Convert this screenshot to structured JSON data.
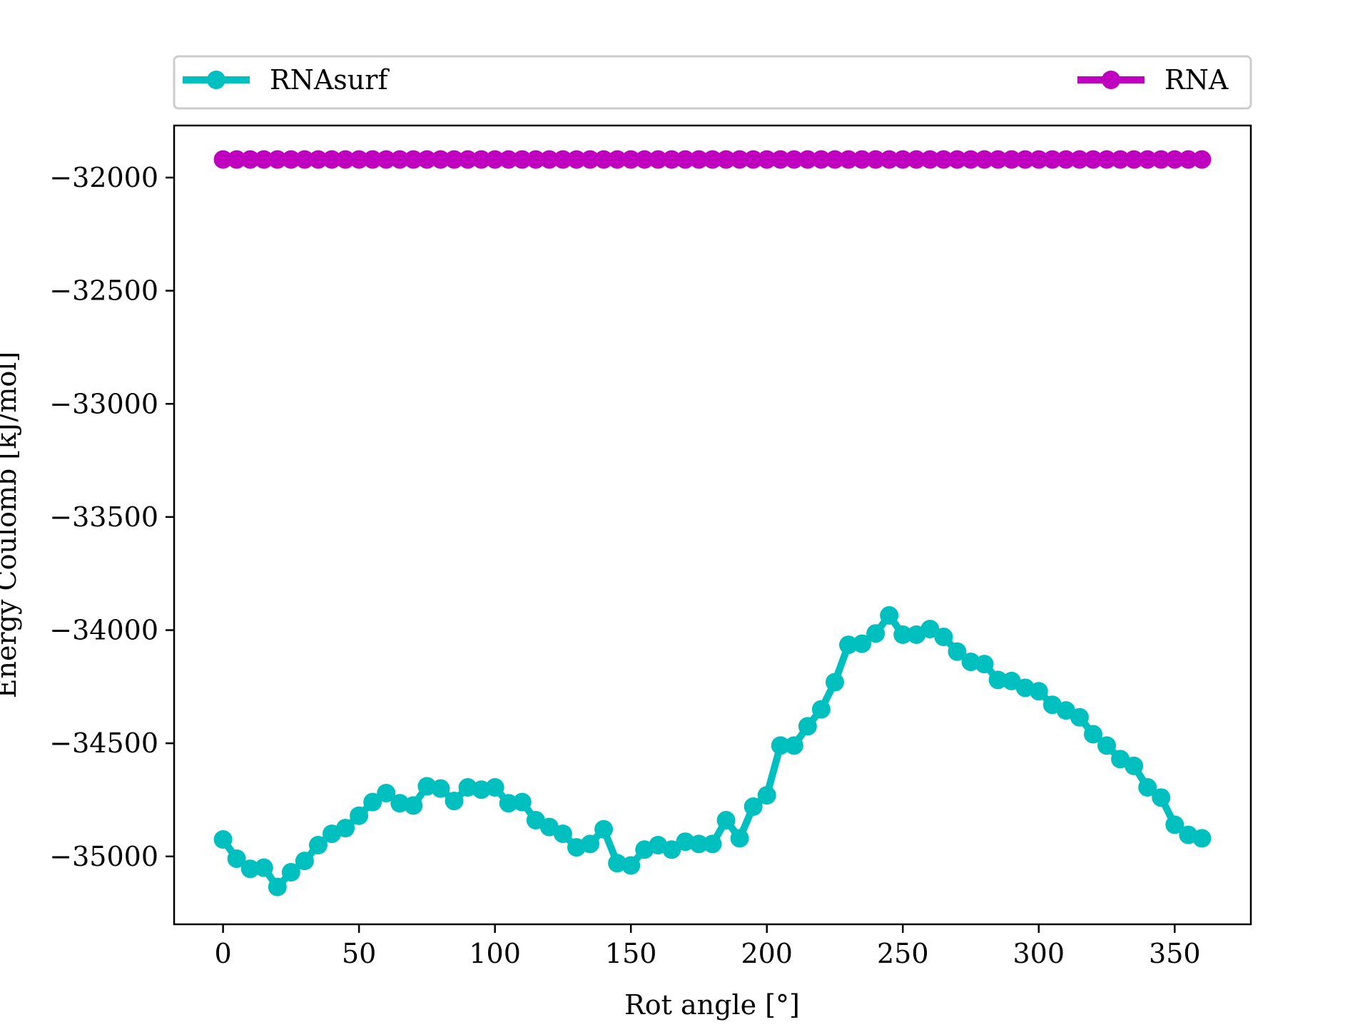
{
  "chart_data": {
    "type": "line",
    "title": "",
    "xlabel": "Rot angle [°]",
    "ylabel": "Energy Coulomb [kJ/mol]",
    "xlim": [
      -18,
      378
    ],
    "ylim": [
      -35300,
      -31770
    ],
    "xticks": [
      0,
      50,
      100,
      150,
      200,
      250,
      300,
      350
    ],
    "xtick_labels": [
      "0",
      "50",
      "100",
      "150",
      "200",
      "250",
      "300",
      "350"
    ],
    "yticks": [
      -32000,
      -32500,
      -33000,
      -33500,
      -34000,
      -34500,
      -35000
    ],
    "ytick_labels": [
      "−32000",
      "−32500",
      "−33000",
      "−33500",
      "−34000",
      "−34500",
      "−35000"
    ],
    "grid": false,
    "legend_placement": "top, outside plot",
    "x": [
      0,
      5,
      10,
      15,
      20,
      25,
      30,
      35,
      40,
      45,
      50,
      55,
      60,
      65,
      70,
      75,
      80,
      85,
      90,
      95,
      100,
      105,
      110,
      115,
      120,
      125,
      130,
      135,
      140,
      145,
      150,
      155,
      160,
      165,
      170,
      175,
      180,
      185,
      190,
      195,
      200,
      205,
      210,
      215,
      220,
      225,
      230,
      235,
      240,
      245,
      250,
      255,
      260,
      265,
      270,
      275,
      280,
      285,
      290,
      295,
      300,
      305,
      310,
      315,
      320,
      325,
      330,
      335,
      340,
      345,
      350,
      355,
      360
    ],
    "series": [
      {
        "name": "RNAsurf",
        "color": "#00bfbf",
        "values": [
          -34925,
          -35010,
          -35055,
          -35050,
          -35135,
          -35070,
          -35020,
          -34950,
          -34900,
          -34875,
          -34820,
          -34760,
          -34720,
          -34765,
          -34775,
          -34690,
          -34700,
          -34755,
          -34695,
          -34705,
          -34695,
          -34765,
          -34760,
          -34840,
          -34870,
          -34900,
          -34960,
          -34945,
          -34880,
          -35030,
          -35040,
          -34970,
          -34950,
          -34970,
          -34935,
          -34945,
          -34945,
          -34840,
          -34920,
          -34780,
          -34730,
          -34510,
          -34510,
          -34425,
          -34350,
          -34230,
          -34065,
          -34060,
          -34015,
          -33935,
          -34020,
          -34020,
          -33995,
          -34030,
          -34095,
          -34140,
          -34150,
          -34220,
          -34225,
          -34255,
          -34270,
          -34330,
          -34355,
          -34385,
          -34460,
          -34510,
          -34570,
          -34600,
          -34695,
          -34740,
          -34860,
          -34905,
          -34920
        ]
      },
      {
        "name": "RNA",
        "color": "#bf00bf",
        "values": [
          -31920,
          -31920,
          -31920,
          -31920,
          -31920,
          -31920,
          -31920,
          -31920,
          -31920,
          -31920,
          -31920,
          -31920,
          -31920,
          -31920,
          -31920,
          -31920,
          -31920,
          -31920,
          -31920,
          -31920,
          -31920,
          -31920,
          -31920,
          -31920,
          -31920,
          -31920,
          -31920,
          -31920,
          -31920,
          -31920,
          -31920,
          -31920,
          -31920,
          -31920,
          -31920,
          -31920,
          -31920,
          -31920,
          -31920,
          -31920,
          -31920,
          -31920,
          -31920,
          -31920,
          -31920,
          -31920,
          -31920,
          -31920,
          -31920,
          -31920,
          -31920,
          -31920,
          -31920,
          -31920,
          -31920,
          -31920,
          -31920,
          -31920,
          -31920,
          -31920,
          -31920,
          -31920,
          -31920,
          -31920,
          -31920,
          -31920,
          -31920,
          -31920,
          -31920,
          -31920,
          -31920,
          -31920,
          -31920
        ]
      }
    ]
  }
}
